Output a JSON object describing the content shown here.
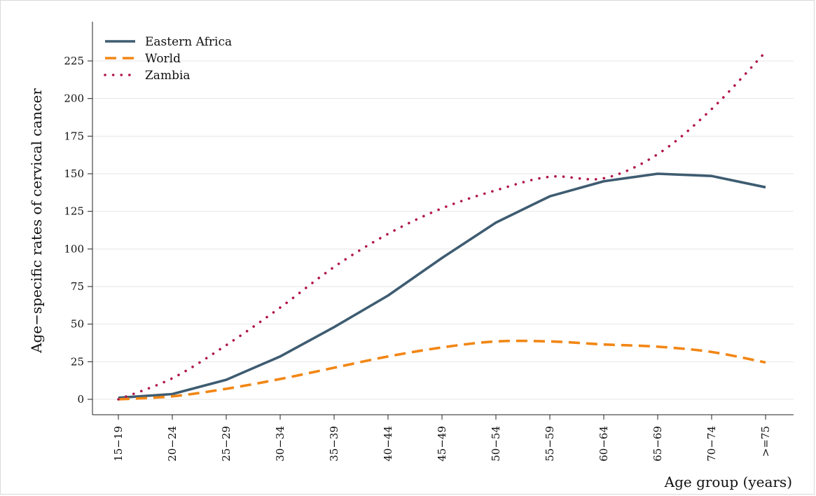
{
  "chart_data": {
    "type": "line",
    "categories": [
      "15−19",
      "20−24",
      "25−29",
      "30−34",
      "35−39",
      "40−44",
      "45−49",
      "50−54",
      "55−59",
      "60−64",
      "65−69",
      "70−74",
      ">=75"
    ],
    "xlabel": "Age group (years)",
    "ylabel": "Age−specific rates of cervical cancer",
    "ylim": [
      -10,
      248
    ],
    "yticks": [
      0,
      25,
      50,
      75,
      100,
      125,
      150,
      175,
      200,
      225
    ],
    "grid": true,
    "legend_position": "top-left",
    "series": [
      {
        "name": "Eastern Africa",
        "color": "#3e5c71",
        "style": "solid",
        "values": [
          1,
          3.5,
          13,
          28.5,
          48,
          69,
          94,
          117.5,
          135,
          145,
          150,
          148.5,
          141
        ]
      },
      {
        "name": "World",
        "color": "#f28614",
        "style": "dashed",
        "values": [
          0,
          2,
          7,
          13.5,
          21,
          28.5,
          34.5,
          38.5,
          38.5,
          36.5,
          35,
          31.5,
          24.5
        ]
      },
      {
        "name": "Zambia",
        "color": "#b0174a",
        "style": "dotted",
        "values": [
          0,
          14,
          36,
          61,
          88,
          110,
          127,
          139,
          148,
          147,
          163,
          193,
          231
        ]
      }
    ]
  }
}
